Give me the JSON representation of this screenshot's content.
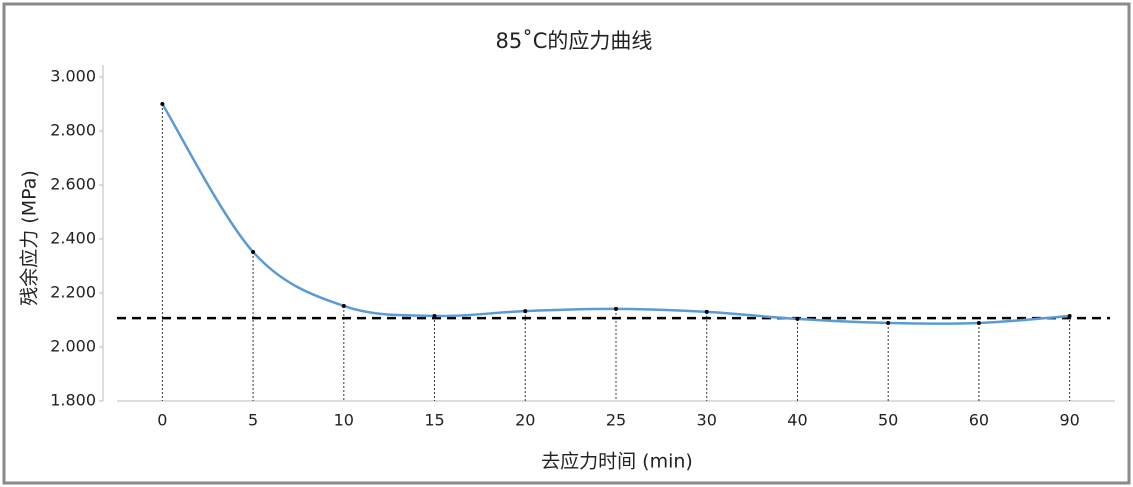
{
  "chart_data": {
    "type": "line",
    "title": "85˚C的应力曲线",
    "x_label": "去应力时间 (min)",
    "y_label": "残余应力 (MPa)",
    "categories": [
      "0",
      "5",
      "10",
      "15",
      "20",
      "25",
      "30",
      "40",
      "50",
      "60",
      "90"
    ],
    "series": [
      {
        "name": "残余应力",
        "color": "#5b9bd5",
        "values": [
          2.9,
          2.352,
          2.152,
          2.115,
          2.133,
          2.141,
          2.13,
          2.104,
          2.089,
          2.089,
          2.115
        ]
      }
    ],
    "reference_line": 2.107,
    "ylim": [
      1.8,
      3.0
    ],
    "yticks": [
      {
        "value": 1.8,
        "label": "1.800"
      },
      {
        "value": 2.0,
        "label": "2.000"
      },
      {
        "value": 2.2,
        "label": "2.200"
      },
      {
        "value": 2.4,
        "label": "2.400"
      },
      {
        "value": 2.6,
        "label": "2.600"
      },
      {
        "value": 2.8,
        "label": "2.800"
      },
      {
        "value": 3.0,
        "label": "3.000"
      }
    ],
    "grid": false
  }
}
